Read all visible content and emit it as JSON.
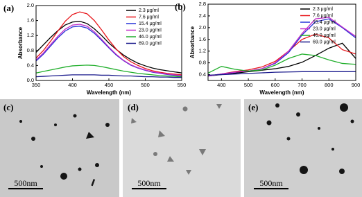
{
  "chart_data": [
    {
      "type": "line",
      "label": "(a)",
      "x_label": "Wavelength (nm)",
      "y_label": "Absorbance",
      "x": [
        350,
        360,
        370,
        380,
        390,
        400,
        410,
        420,
        430,
        440,
        450,
        460,
        470,
        480,
        490,
        500,
        510,
        520,
        530,
        540,
        550
      ],
      "xlim": [
        350,
        550
      ],
      "xticks": [
        350,
        400,
        450,
        500,
        550
      ],
      "ylim": [
        0,
        2.0
      ],
      "yticks": [
        {
          "value": 0,
          "label": "0.0"
        },
        0.4,
        0.8,
        1.2,
        1.6,
        {
          "value": 2.0,
          "label": "2.0"
        }
      ],
      "series": [
        {
          "name": "2.3  μg/ml",
          "color": "#000000",
          "values": [
            0.75,
            0.95,
            1.15,
            1.33,
            1.48,
            1.56,
            1.58,
            1.52,
            1.38,
            1.2,
            1.0,
            0.83,
            0.68,
            0.56,
            0.46,
            0.39,
            0.33,
            0.29,
            0.26,
            0.23,
            0.2
          ]
        },
        {
          "name": "7.6  μg/ml",
          "color": "#e8161b",
          "values": [
            0.6,
            0.8,
            1.05,
            1.32,
            1.58,
            1.76,
            1.83,
            1.78,
            1.6,
            1.35,
            1.08,
            0.84,
            0.64,
            0.5,
            0.4,
            0.32,
            0.26,
            0.22,
            0.19,
            0.17,
            0.15
          ]
        },
        {
          "name": "15.4  μg/ml",
          "color": "#2632d8",
          "values": [
            0.52,
            0.7,
            0.92,
            1.14,
            1.32,
            1.43,
            1.45,
            1.4,
            1.26,
            1.07,
            0.87,
            0.68,
            0.53,
            0.41,
            0.33,
            0.27,
            0.22,
            0.19,
            0.16,
            0.14,
            0.12
          ]
        },
        {
          "name": "23.0  μg/ml",
          "color": "#c02ac8",
          "values": [
            0.55,
            0.73,
            0.96,
            1.18,
            1.37,
            1.48,
            1.5,
            1.45,
            1.3,
            1.1,
            0.89,
            0.7,
            0.54,
            0.42,
            0.34,
            0.28,
            0.23,
            0.2,
            0.17,
            0.15,
            0.13
          ]
        },
        {
          "name": "46.0  μg/ml",
          "color": "#1fae2a",
          "values": [
            0.2,
            0.24,
            0.28,
            0.32,
            0.36,
            0.39,
            0.4,
            0.41,
            0.4,
            0.37,
            0.33,
            0.29,
            0.25,
            0.22,
            0.19,
            0.17,
            0.15,
            0.13,
            0.12,
            0.11,
            0.1
          ]
        },
        {
          "name": "69.0  μg/ml",
          "color": "#1a1a8c",
          "values": [
            0.1,
            0.11,
            0.12,
            0.13,
            0.14,
            0.15,
            0.15,
            0.15,
            0.15,
            0.14,
            0.14,
            0.13,
            0.12,
            0.12,
            0.11,
            0.1,
            0.1,
            0.09,
            0.09,
            0.08,
            0.08
          ]
        }
      ]
    },
    {
      "type": "line",
      "label": "(b)",
      "x_label": "Wavelength (nm)",
      "y_label": "Absorbance",
      "x": [
        350,
        400,
        450,
        500,
        550,
        600,
        650,
        700,
        750,
        800,
        850,
        900
      ],
      "xlim": [
        350,
        900
      ],
      "xticks": [
        400,
        500,
        600,
        700,
        800,
        900
      ],
      "ylim": [
        0.2,
        2.8
      ],
      "yticks": [
        0.4,
        0.8,
        1.2,
        1.6,
        {
          "value": 2.0,
          "label": "2.0"
        },
        2.4,
        2.8
      ],
      "series": [
        {
          "name": "2.3  μg/ml",
          "color": "#000000",
          "values": [
            0.35,
            0.4,
            0.45,
            0.5,
            0.55,
            0.6,
            0.68,
            0.82,
            1.05,
            1.3,
            1.47,
            0.95
          ]
        },
        {
          "name": "7.6  μg/ml",
          "color": "#e8161b",
          "values": [
            0.35,
            0.42,
            0.5,
            0.56,
            0.66,
            0.85,
            1.2,
            1.6,
            1.78,
            1.65,
            1.25,
            1.1
          ]
        },
        {
          "name": "15.4  μg/ml",
          "color": "#2632d8",
          "values": [
            0.35,
            0.42,
            0.48,
            0.52,
            0.6,
            0.78,
            1.15,
            1.75,
            2.2,
            2.3,
            2.0,
            1.65
          ]
        },
        {
          "name": "23.0  μg/ml",
          "color": "#c02ac8",
          "values": [
            0.35,
            0.42,
            0.48,
            0.52,
            0.6,
            0.8,
            1.2,
            1.8,
            2.3,
            2.35,
            2.02,
            1.7
          ]
        },
        {
          "name": "46.0  μg/ml",
          "color": "#1fae2a",
          "values": [
            0.45,
            0.68,
            0.58,
            0.52,
            0.56,
            0.72,
            0.95,
            1.1,
            1.05,
            0.9,
            0.78,
            0.75
          ]
        },
        {
          "name": "69.0  μg/ml",
          "color": "#1a1a8c",
          "values": [
            0.38,
            0.4,
            0.42,
            0.44,
            0.46,
            0.48,
            0.49,
            0.5,
            0.5,
            0.5,
            0.5,
            0.5
          ]
        }
      ]
    }
  ],
  "images": [
    {
      "label": "(c)",
      "scale_bar": "500nm"
    },
    {
      "label": "(d)",
      "scale_bar": "500nm"
    },
    {
      "label": "(e)",
      "scale_bar": "500nm"
    }
  ]
}
